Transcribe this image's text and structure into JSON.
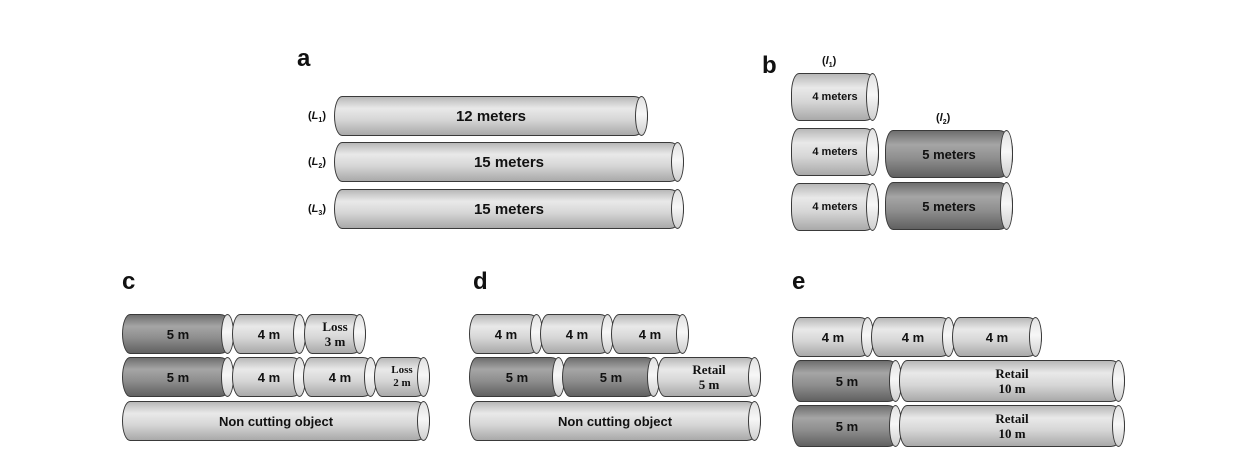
{
  "panels": {
    "a": "a",
    "b": "b",
    "c": "c",
    "d": "d",
    "e": "e"
  },
  "a": {
    "rows": [
      {
        "tag": "L",
        "sub": "1",
        "label": "12 meters"
      },
      {
        "tag": "L",
        "sub": "2",
        "label": "15 meters"
      },
      {
        "tag": "L",
        "sub": "3",
        "label": "15 meters"
      }
    ]
  },
  "b": {
    "tag1": "l",
    "sub1": "1",
    "tag2": "l",
    "sub2": "2",
    "col1": [
      "4 meters",
      "4 meters",
      "4 meters"
    ],
    "col2": [
      "5 meters",
      "5 meters"
    ]
  },
  "c": {
    "row1": [
      "5 m",
      "4 m",
      "Loss",
      "3 m"
    ],
    "row2": [
      "5 m",
      "4 m",
      "4 m",
      "Loss",
      "2 m"
    ],
    "row3": "Non cutting object"
  },
  "d": {
    "row1": [
      "4 m",
      "4 m",
      "4 m"
    ],
    "row2": [
      "5 m",
      "5 m",
      "Retail",
      "5 m"
    ],
    "row3": "Non cutting object"
  },
  "e": {
    "row1": [
      "4 m",
      "4 m",
      "4 m"
    ],
    "row2": [
      "5 m",
      "Retail",
      "10 m"
    ],
    "row3": [
      "5 m",
      "Retail",
      "10 m"
    ]
  }
}
